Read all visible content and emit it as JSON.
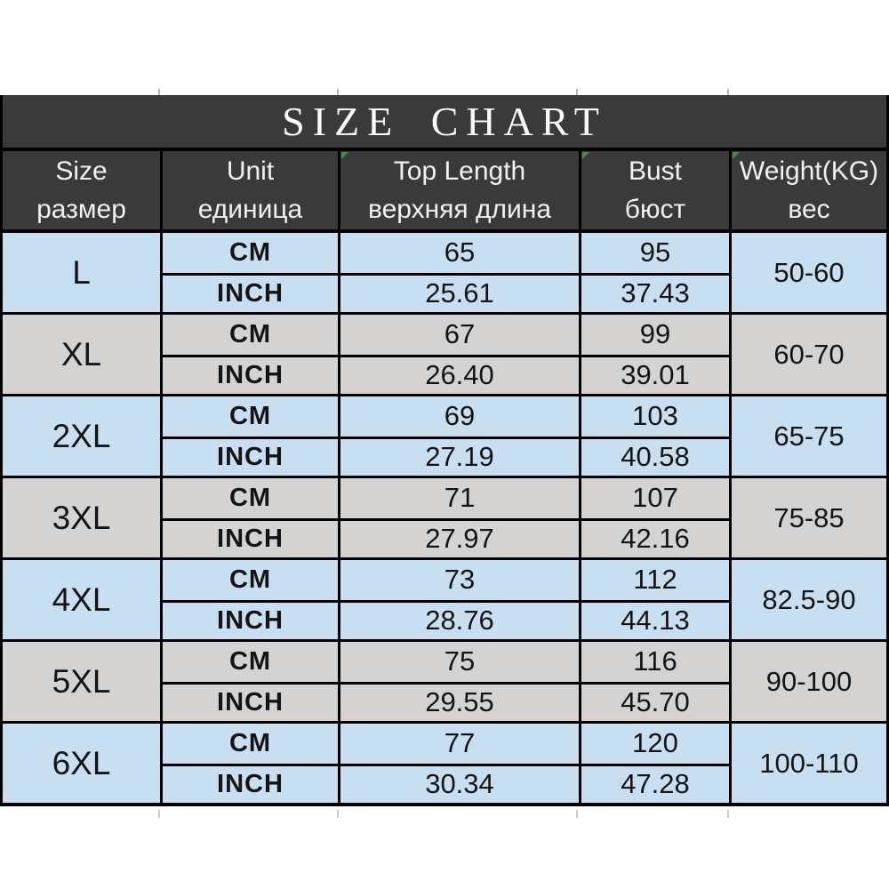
{
  "chart_data": {
    "type": "table",
    "title": "SIZE CHART",
    "columns": [
      {
        "en": "Size",
        "ru": "размер",
        "marker": false
      },
      {
        "en": "Unit",
        "ru": "единица",
        "marker": false
      },
      {
        "en": "Top Length",
        "ru": "верхняя длина",
        "marker": true
      },
      {
        "en": "Bust",
        "ru": "бюст",
        "marker": true
      },
      {
        "en": "Weight(KG)",
        "ru": "вес",
        "marker": true
      }
    ],
    "unit_rows": [
      "CM",
      "INCH"
    ],
    "rows": [
      {
        "size": "L",
        "tone": "blue",
        "cm": [
          "65",
          "95"
        ],
        "inch": [
          "25.61",
          "37.43"
        ],
        "weight": "50-60"
      },
      {
        "size": "XL",
        "tone": "gray",
        "cm": [
          "67",
          "99"
        ],
        "inch": [
          "26.40",
          "39.01"
        ],
        "weight": "60-70"
      },
      {
        "size": "2XL",
        "tone": "blue",
        "cm": [
          "69",
          "103"
        ],
        "inch": [
          "27.19",
          "40.58"
        ],
        "weight": "65-75"
      },
      {
        "size": "3XL",
        "tone": "gray",
        "cm": [
          "71",
          "107"
        ],
        "inch": [
          "27.97",
          "42.16"
        ],
        "weight": "75-85"
      },
      {
        "size": "4XL",
        "tone": "blue",
        "cm": [
          "73",
          "112"
        ],
        "inch": [
          "28.76",
          "44.13"
        ],
        "weight": "82.5-90"
      },
      {
        "size": "5XL",
        "tone": "gray",
        "cm": [
          "75",
          "116"
        ],
        "inch": [
          "29.55",
          "45.70"
        ],
        "weight": "90-100"
      },
      {
        "size": "6XL",
        "tone": "blue",
        "cm": [
          "77",
          "120"
        ],
        "inch": [
          "30.34",
          "47.28"
        ],
        "weight": "100-110"
      }
    ],
    "layout": {
      "grid": "off",
      "row_tone_alternation": [
        "blue",
        "gray"
      ]
    }
  },
  "colors": {
    "header_bg": "#3b3a3a",
    "header_text": "#f2f0ef",
    "row_blue": "#c8dff2",
    "row_gray": "#d5d3d2",
    "border": "#000000",
    "cell_text": "#141414",
    "marker_green": "#3f8f3f"
  }
}
